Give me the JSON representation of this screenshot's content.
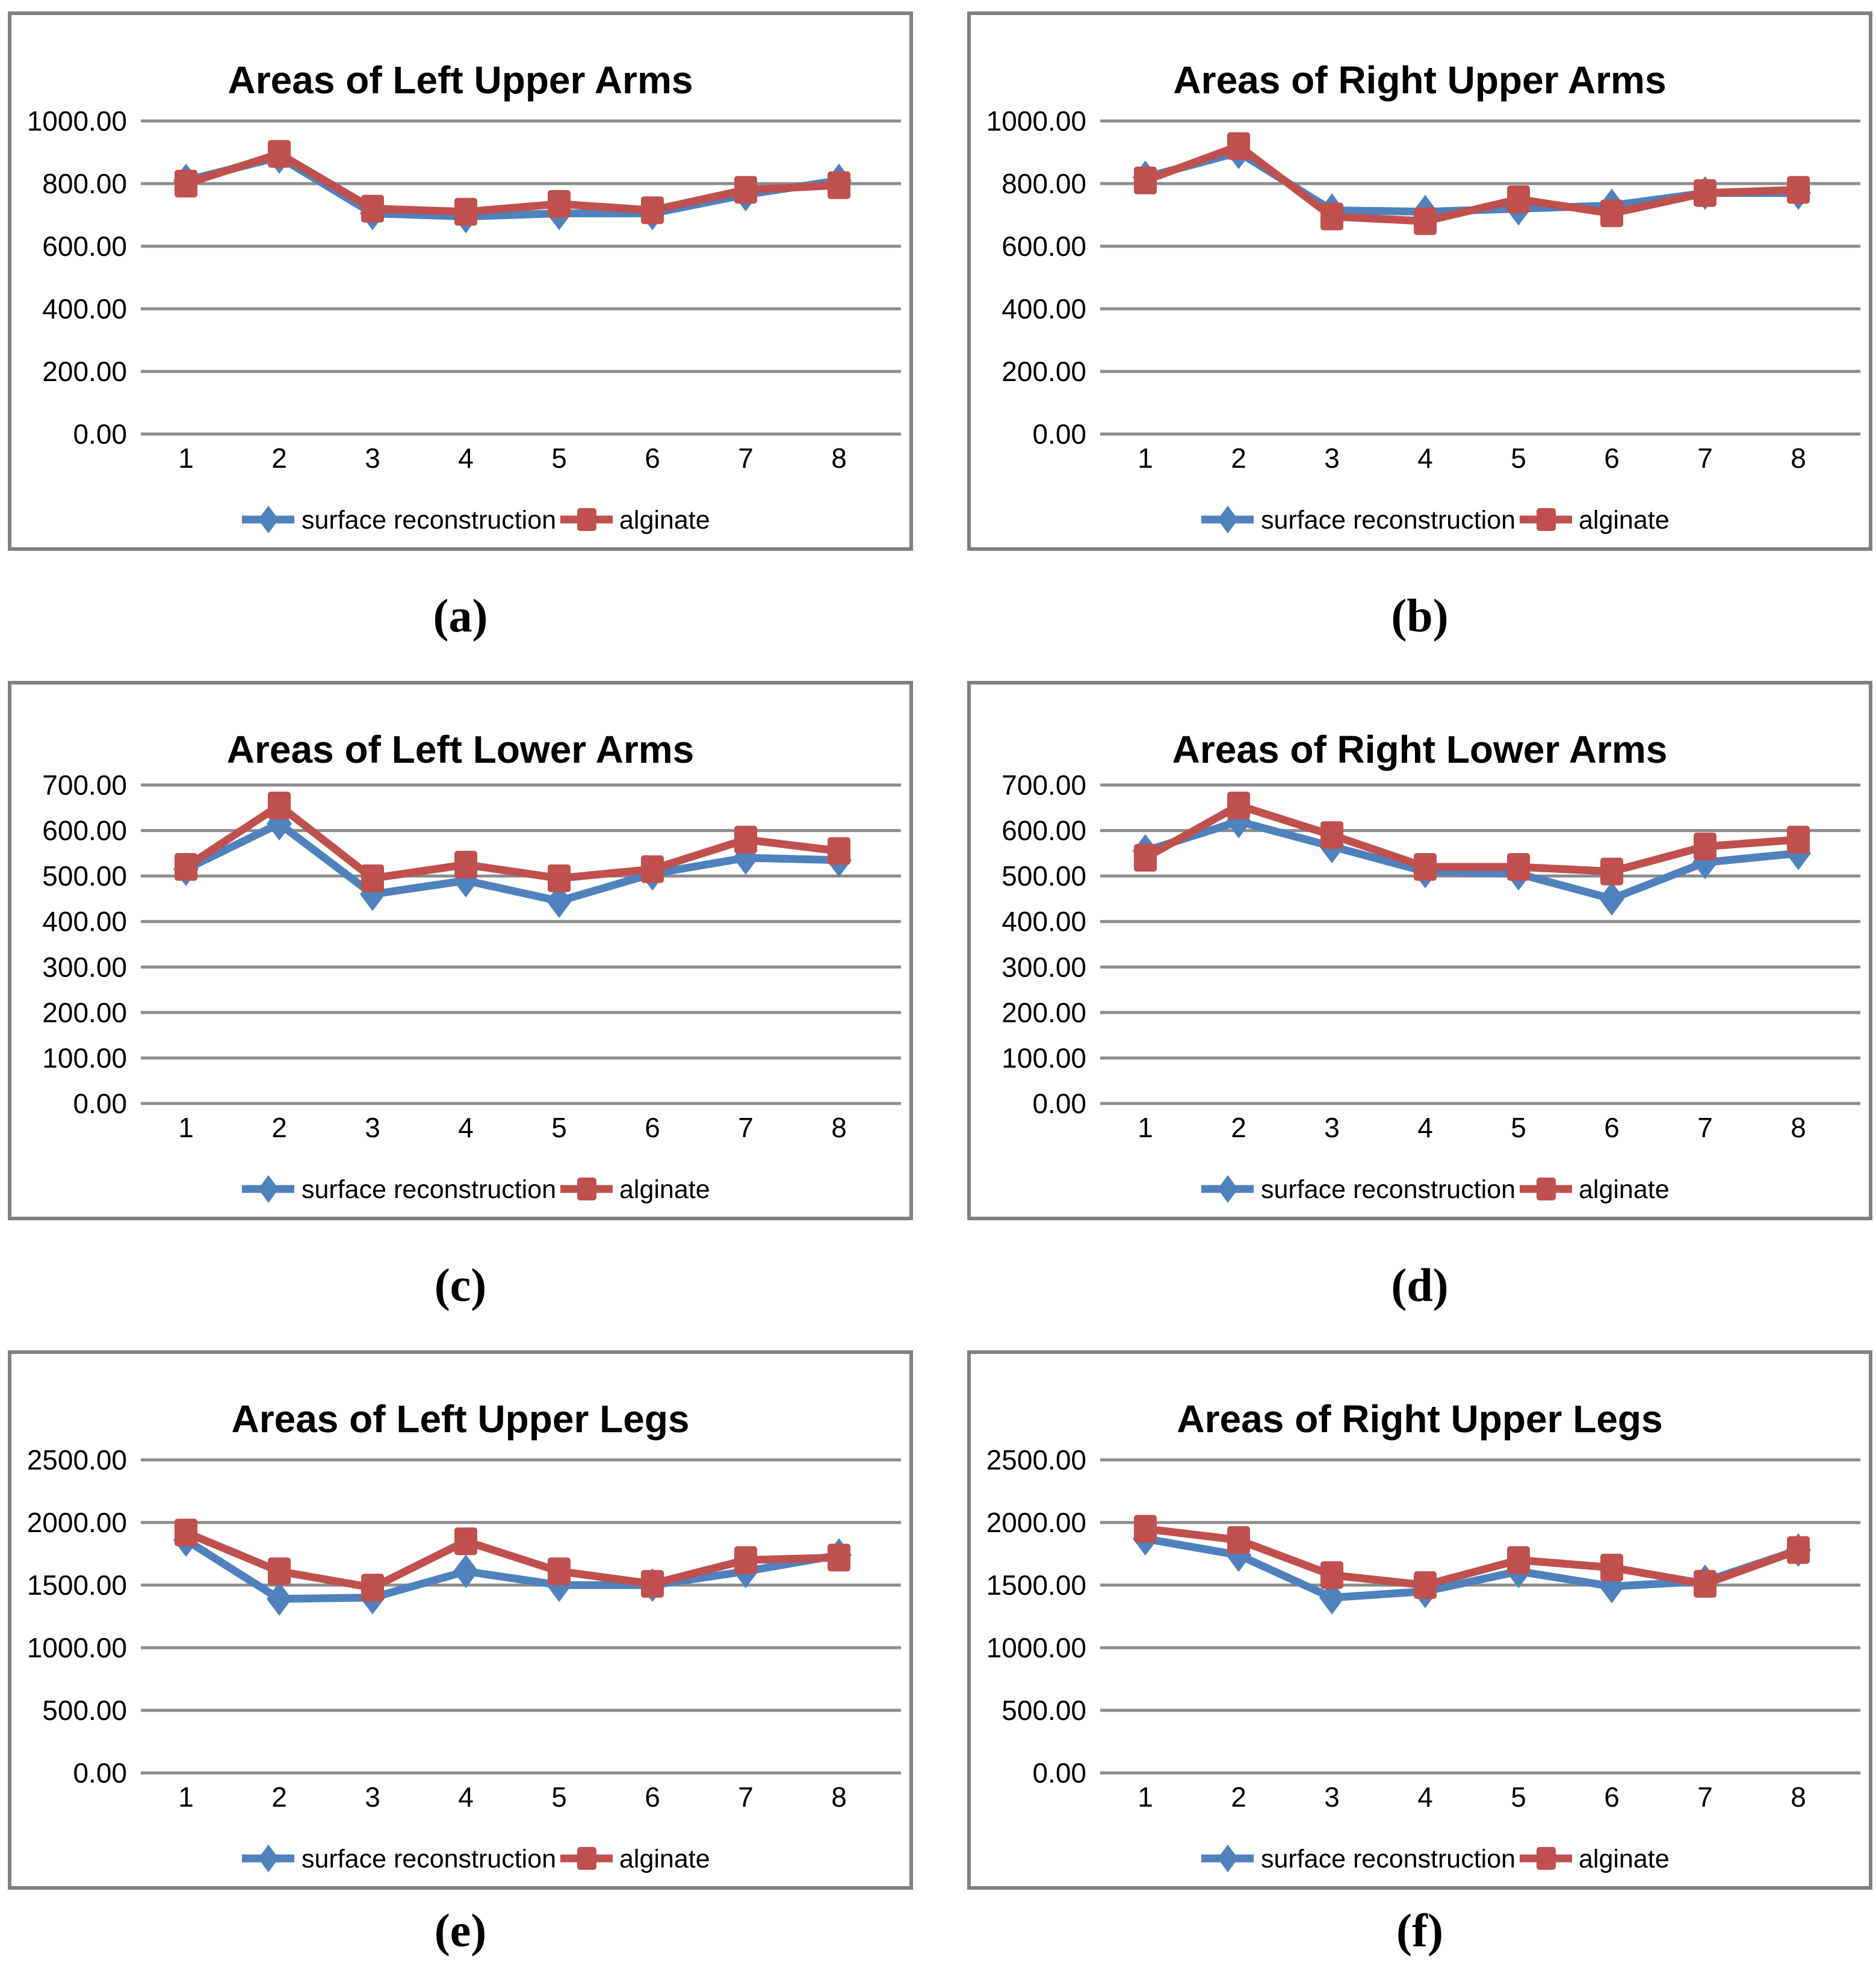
{
  "colors": {
    "series_blue": "#4F81BD",
    "series_red": "#C0504D",
    "gridline": "#8C8C8C",
    "panel_border": "#808080",
    "text": "#000000"
  },
  "legend": {
    "series1_label": "surface reconstruction",
    "series2_label": "alginate"
  },
  "chart_data": [
    {
      "type": "line",
      "key": "a",
      "caption": "(a)",
      "title": "Areas of Left Upper Arms",
      "xlabel": "",
      "ylabel": "",
      "ylim": [
        0,
        1000
      ],
      "ystep": 200,
      "y_tick_labels": [
        "1000.00",
        "800.00",
        "600.00",
        "400.00",
        "200.00",
        "0.00"
      ],
      "x_labels": [
        "1",
        "2",
        "3",
        "4",
        "5",
        "6",
        "7",
        "8"
      ],
      "grid": true,
      "legend_position": "bottom",
      "series": [
        {
          "name": "surface reconstruction",
          "color": "#4F81BD",
          "marker": "diamond",
          "values": [
            810,
            885,
            705,
            695,
            705,
            705,
            765,
            810
          ]
        },
        {
          "name": "alginate",
          "color": "#C0504D",
          "marker": "square",
          "values": [
            800,
            895,
            720,
            710,
            735,
            715,
            780,
            795
          ]
        }
      ]
    },
    {
      "type": "line",
      "key": "b",
      "caption": "(b)",
      "title": "Areas of Right Upper Arms",
      "xlabel": "",
      "ylabel": "",
      "ylim": [
        0,
        1000
      ],
      "ystep": 200,
      "y_tick_labels": [
        "1000.00",
        "800.00",
        "600.00",
        "400.00",
        "200.00",
        "0.00"
      ],
      "x_labels": [
        "1",
        "2",
        "3",
        "4",
        "5",
        "6",
        "7",
        "8"
      ],
      "grid": true,
      "legend_position": "bottom",
      "series": [
        {
          "name": "surface reconstruction",
          "color": "#4F81BD",
          "marker": "diamond",
          "values": [
            820,
            900,
            715,
            710,
            720,
            730,
            770,
            770
          ]
        },
        {
          "name": "alginate",
          "color": "#C0504D",
          "marker": "square",
          "values": [
            810,
            920,
            695,
            680,
            750,
            705,
            770,
            780
          ]
        }
      ]
    },
    {
      "type": "line",
      "key": "c",
      "caption": "(c)",
      "title": "Areas of Left Lower Arms",
      "xlabel": "",
      "ylabel": "",
      "ylim": [
        0,
        700
      ],
      "ystep": 100,
      "y_tick_labels": [
        "700.00",
        "600.00",
        "500.00",
        "400.00",
        "300.00",
        "200.00",
        "100.00",
        "0.00"
      ],
      "x_labels": [
        "1",
        "2",
        "3",
        "4",
        "5",
        "6",
        "7",
        "8"
      ],
      "grid": true,
      "legend_position": "bottom",
      "series": [
        {
          "name": "surface reconstruction",
          "color": "#4F81BD",
          "marker": "diamond",
          "values": [
            515,
            615,
            460,
            490,
            445,
            505,
            540,
            535
          ]
        },
        {
          "name": "alginate",
          "color": "#C0504D",
          "marker": "square",
          "values": [
            520,
            655,
            495,
            525,
            495,
            515,
            580,
            555
          ]
        }
      ]
    },
    {
      "type": "line",
      "key": "d",
      "caption": "(d)",
      "title": "Areas of Right Lower Arms",
      "xlabel": "",
      "ylabel": "",
      "ylim": [
        0,
        700
      ],
      "ystep": 100,
      "y_tick_labels": [
        "700.00",
        "600.00",
        "500.00",
        "400.00",
        "300.00",
        "200.00",
        "100.00",
        "0.00"
      ],
      "x_labels": [
        "1",
        "2",
        "3",
        "4",
        "5",
        "6",
        "7",
        "8"
      ],
      "grid": true,
      "legend_position": "bottom",
      "series": [
        {
          "name": "surface reconstruction",
          "color": "#4F81BD",
          "marker": "diamond",
          "values": [
            555,
            620,
            565,
            510,
            505,
            450,
            530,
            550
          ]
        },
        {
          "name": "alginate",
          "color": "#C0504D",
          "marker": "square",
          "values": [
            540,
            655,
            590,
            520,
            520,
            510,
            565,
            580
          ]
        }
      ]
    },
    {
      "type": "line",
      "key": "e",
      "caption": "(e)",
      "title": "Areas of Left Upper Legs",
      "xlabel": "",
      "ylabel": "",
      "ylim": [
        0,
        2500
      ],
      "ystep": 500,
      "y_tick_labels": [
        "2500.00",
        "2000.00",
        "1500.00",
        "1000.00",
        "500.00",
        "0.00"
      ],
      "x_labels": [
        "1",
        "2",
        "3",
        "4",
        "5",
        "6",
        "7",
        "8"
      ],
      "grid": true,
      "legend_position": "bottom",
      "series": [
        {
          "name": "surface reconstruction",
          "color": "#4F81BD",
          "marker": "diamond",
          "values": [
            1860,
            1390,
            1400,
            1610,
            1500,
            1500,
            1610,
            1740
          ]
        },
        {
          "name": "alginate",
          "color": "#C0504D",
          "marker": "square",
          "values": [
            1920,
            1610,
            1480,
            1850,
            1610,
            1510,
            1700,
            1720
          ]
        }
      ]
    },
    {
      "type": "line",
      "key": "f",
      "caption": "(f)",
      "title": "Areas of Right Upper Legs",
      "xlabel": "",
      "ylabel": "",
      "ylim": [
        0,
        2500
      ],
      "ystep": 500,
      "y_tick_labels": [
        "2500.00",
        "2000.00",
        "1500.00",
        "1000.00",
        "500.00",
        "0.00"
      ],
      "x_labels": [
        "1",
        "2",
        "3",
        "4",
        "5",
        "6",
        "7",
        "8"
      ],
      "grid": true,
      "legend_position": "bottom",
      "series": [
        {
          "name": "surface reconstruction",
          "color": "#4F81BD",
          "marker": "diamond",
          "values": [
            1870,
            1740,
            1400,
            1450,
            1610,
            1490,
            1530,
            1780
          ]
        },
        {
          "name": "alginate",
          "color": "#C0504D",
          "marker": "square",
          "values": [
            1950,
            1860,
            1580,
            1500,
            1700,
            1640,
            1510,
            1780
          ]
        }
      ]
    }
  ]
}
